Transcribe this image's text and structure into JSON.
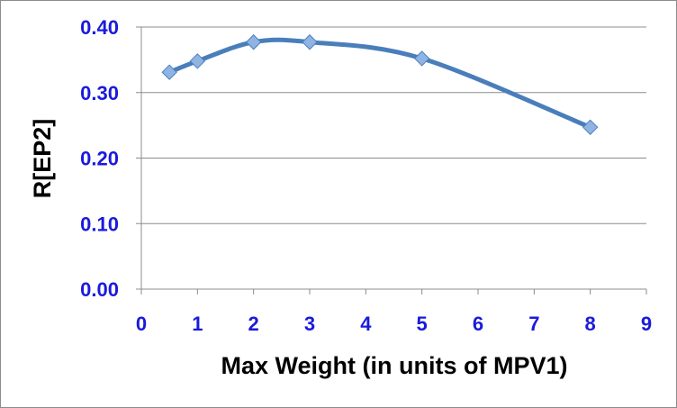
{
  "chart_data": {
    "type": "line",
    "xlabel": "Max Weight (in units of MPV1)",
    "ylabel": "R[EP2]",
    "xlim": [
      0,
      9
    ],
    "ylim": [
      0,
      0.4
    ],
    "x_ticks": [
      "0",
      "1",
      "2",
      "3",
      "4",
      "5",
      "6",
      "7",
      "8",
      "9"
    ],
    "y_ticks": [
      "0.00",
      "0.10",
      "0.20",
      "0.30",
      "0.40"
    ],
    "grid": "horizontal",
    "legend": "none",
    "smooth": true,
    "series": [
      {
        "x": [
          0.5,
          1,
          2,
          3,
          5,
          8
        ],
        "y": [
          0.331,
          0.348,
          0.377,
          0.377,
          0.352,
          0.247
        ],
        "line_color": "#4a7ebb",
        "marker": "diamond",
        "marker_color": "#8fb4e3"
      }
    ]
  }
}
